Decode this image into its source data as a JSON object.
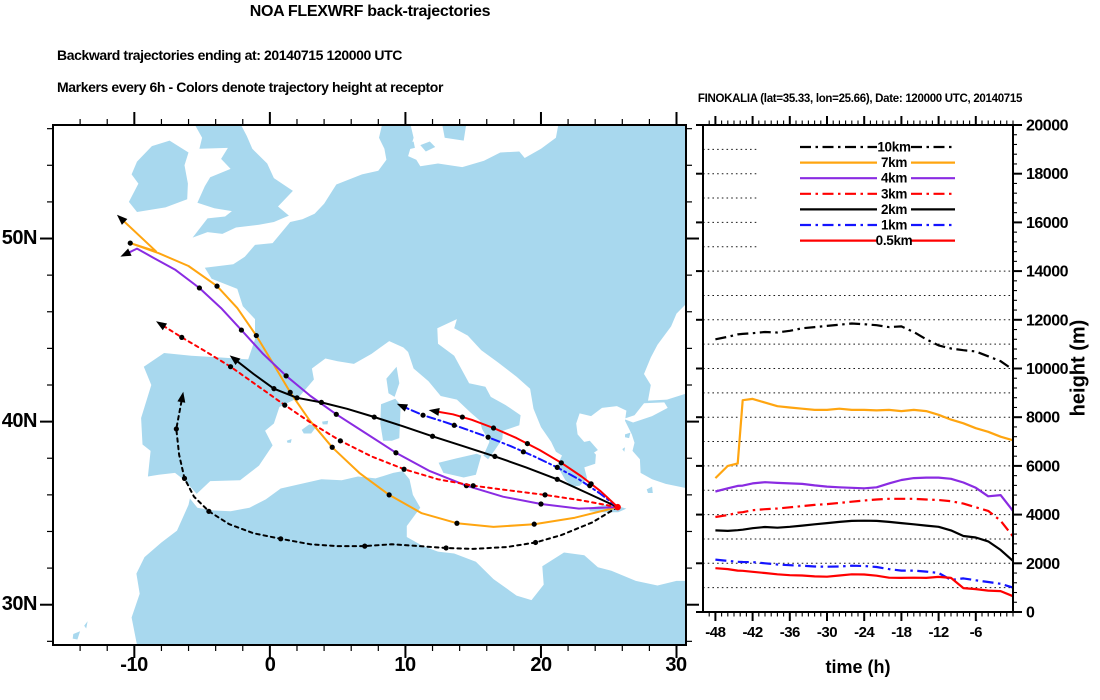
{
  "header": {
    "title": "NOA FLEXWRF back-trajectories",
    "subtitle1": "Backward trajectories ending at: 20140715  120000 UTC",
    "subtitle2": "Markers every 6h - Colors denote trajectory height at receptor"
  },
  "map": {
    "lat_labels": [
      "50N",
      "40N",
      "30N"
    ],
    "lon_labels": [
      "-10",
      "0",
      "10",
      "20",
      "30"
    ],
    "land_color": "#A8D8EE",
    "sea_color": "#FFFFFF"
  },
  "chart_data": [
    {
      "type": "line",
      "title": "FINOKALIA (lat=35.33,  lon=25.66), Date: 120000 UTC, 20140715",
      "xlabel": "time (h)",
      "ylabel": "height (m)",
      "xlim": [
        -50,
        0
      ],
      "ylim": [
        0,
        20000
      ],
      "x_ticks": [
        -48,
        -42,
        -36,
        -30,
        -24,
        -18,
        -12,
        -6
      ],
      "y_ticks": [
        0,
        2000,
        4000,
        6000,
        8000,
        10000,
        12000,
        14000,
        16000,
        18000,
        20000
      ],
      "grid": "horizontal dotted lines every 1000 m",
      "legend_position": "upper center inside",
      "x": [
        -48,
        -46,
        -44.4,
        -43.6,
        -42,
        -40,
        -38,
        -36,
        -34,
        -32,
        -30,
        -28,
        -26,
        -24,
        -22,
        -20,
        -18,
        -16,
        -14,
        -12,
        -10,
        -8,
        -6,
        -4,
        -2,
        0
      ],
      "series": [
        {
          "name": "10km",
          "color": "#000000",
          "line_style": "dashdot",
          "values": [
            11200,
            11300,
            11400,
            11420,
            11450,
            11500,
            11480,
            11550,
            11650,
            11700,
            11750,
            11800,
            11850,
            11820,
            11780,
            11700,
            11730,
            11500,
            11200,
            10950,
            10820,
            10750,
            10700,
            10500,
            10300,
            9950
          ]
        },
        {
          "name": "7km",
          "color": "#FFA510",
          "line_style": "solid",
          "values": [
            5500,
            6000,
            6100,
            8700,
            8750,
            8600,
            8450,
            8400,
            8350,
            8300,
            8300,
            8350,
            8300,
            8300,
            8280,
            8300,
            8250,
            8300,
            8250,
            8100,
            7900,
            7750,
            7550,
            7400,
            7200,
            7050
          ]
        },
        {
          "name": "4km",
          "color": "#8A2BE2",
          "line_style": "solid",
          "values": [
            4950,
            5080,
            5180,
            5190,
            5280,
            5330,
            5300,
            5280,
            5260,
            5200,
            5150,
            5120,
            5100,
            5080,
            5120,
            5280,
            5420,
            5500,
            5520,
            5520,
            5470,
            5320,
            5100,
            4750,
            4800,
            4150
          ]
        },
        {
          "name": "3km",
          "color": "#FF0000",
          "line_style": "dashdot",
          "values": [
            3900,
            3980,
            4080,
            4100,
            4180,
            4220,
            4250,
            4300,
            4350,
            4400,
            4430,
            4480,
            4530,
            4580,
            4620,
            4650,
            4650,
            4650,
            4620,
            4600,
            4550,
            4450,
            4300,
            4150,
            3750,
            3100
          ]
        },
        {
          "name": "2km",
          "color": "#000000",
          "line_style": "solid",
          "values": [
            3350,
            3330,
            3360,
            3380,
            3440,
            3490,
            3460,
            3500,
            3550,
            3600,
            3650,
            3700,
            3740,
            3750,
            3740,
            3700,
            3650,
            3600,
            3550,
            3500,
            3350,
            3120,
            3060,
            2900,
            2550,
            2100
          ]
        },
        {
          "name": "1km",
          "color": "#1414FF",
          "line_style": "dashdot",
          "values": [
            2150,
            2100,
            2060,
            2055,
            2050,
            2000,
            1950,
            1920,
            1900,
            1870,
            1860,
            1870,
            1900,
            1890,
            1850,
            1760,
            1700,
            1700,
            1660,
            1600,
            1320,
            1380,
            1300,
            1230,
            1160,
            1000
          ]
        },
        {
          "name": "0.5km",
          "color": "#FF0000",
          "line_style": "solid",
          "values": [
            1800,
            1760,
            1700,
            1690,
            1650,
            1600,
            1550,
            1510,
            1500,
            1460,
            1450,
            1500,
            1550,
            1540,
            1490,
            1410,
            1400,
            1410,
            1400,
            1440,
            1400,
            980,
            940,
            880,
            860,
            650
          ]
        }
      ]
    },
    {
      "type": "map-trajectories",
      "region": "Europe / Mediterranean",
      "extent": {
        "lon_min": -16,
        "lon_max": 30.7,
        "lat_min": 27.8,
        "lat_max": 56.2
      },
      "receptor": {
        "name": "FINOKALIA",
        "lon": 25.66,
        "lat": 35.33,
        "marker_color": "#FF0000"
      },
      "marker_interval": "6h",
      "trajectories": [
        {
          "name": "10km",
          "color": "#000000",
          "line_style": "dashed",
          "path": [
            [
              25.66,
              35.33
            ],
            [
              23.8,
              34.5
            ],
            [
              21.5,
              33.8
            ],
            [
              19.6,
              33.4
            ],
            [
              17.5,
              33.15
            ],
            [
              15.0,
              33.05
            ],
            [
              13.0,
              33.1
            ],
            [
              11.0,
              33.2
            ],
            [
              9.0,
              33.3
            ],
            [
              7.0,
              33.2
            ],
            [
              5.0,
              33.2
            ],
            [
              3.0,
              33.3
            ],
            [
              0.8,
              33.6
            ],
            [
              -1.2,
              33.9
            ],
            [
              -3.0,
              34.4
            ],
            [
              -4.5,
              35.1
            ],
            [
              -5.6,
              35.9
            ],
            [
              -6.3,
              36.9
            ],
            [
              -6.7,
              38.2
            ],
            [
              -6.9,
              39.6
            ],
            [
              -6.5,
              41.2
            ]
          ],
          "markers": [
            [
              25.66,
              35.33
            ],
            [
              19.6,
              33.4
            ],
            [
              13.0,
              33.1
            ],
            [
              7.0,
              33.2
            ],
            [
              0.8,
              33.6
            ],
            [
              -4.5,
              35.1
            ],
            [
              -6.3,
              36.9
            ],
            [
              -6.9,
              39.6
            ]
          ]
        },
        {
          "name": "7km",
          "color": "#FFA510",
          "line_style": "solid",
          "path": [
            [
              25.66,
              35.33
            ],
            [
              22.5,
              34.75
            ],
            [
              19.5,
              34.4
            ],
            [
              16.5,
              34.25
            ],
            [
              13.8,
              34.45
            ],
            [
              11.2,
              35.0
            ],
            [
              8.8,
              36.0
            ],
            [
              6.6,
              37.2
            ],
            [
              4.6,
              38.6
            ],
            [
              2.9,
              40.1
            ],
            [
              1.5,
              41.6
            ],
            [
              0.3,
              43.1
            ],
            [
              -1.0,
              44.7
            ],
            [
              -2.4,
              46.2
            ],
            [
              -3.9,
              47.4
            ],
            [
              -6.0,
              48.5
            ],
            [
              -8.2,
              49.2
            ],
            [
              -10.3,
              49.75
            ],
            [
              -8.4,
              49.3
            ],
            [
              -10.85,
              51.0
            ]
          ],
          "markers": [
            [
              25.66,
              35.33
            ],
            [
              19.5,
              34.4
            ],
            [
              13.8,
              34.45
            ],
            [
              8.8,
              36.0
            ],
            [
              4.6,
              38.6
            ],
            [
              1.5,
              41.6
            ],
            [
              -1.0,
              44.7
            ],
            [
              -3.9,
              47.4
            ],
            [
              -10.3,
              49.75
            ]
          ]
        },
        {
          "name": "4km",
          "color": "#8A2BE2",
          "line_style": "solid",
          "path": [
            [
              25.66,
              35.33
            ],
            [
              22.8,
              35.25
            ],
            [
              20.0,
              35.5
            ],
            [
              17.2,
              35.9
            ],
            [
              14.5,
              36.5
            ],
            [
              11.8,
              37.3
            ],
            [
              9.3,
              38.3
            ],
            [
              7.0,
              39.4
            ],
            [
              4.9,
              40.4
            ],
            [
              3.0,
              41.4
            ],
            [
              1.2,
              42.5
            ],
            [
              -0.5,
              43.7
            ],
            [
              -2.1,
              45.0
            ],
            [
              -3.6,
              46.2
            ],
            [
              -5.2,
              47.3
            ],
            [
              -7.0,
              48.3
            ],
            [
              -8.6,
              48.95
            ],
            [
              -9.8,
              49.45
            ],
            [
              -10.5,
              49.2
            ]
          ],
          "markers": [
            [
              25.66,
              35.33
            ],
            [
              20.0,
              35.5
            ],
            [
              14.5,
              36.5
            ],
            [
              9.3,
              38.3
            ],
            [
              4.9,
              40.4
            ],
            [
              1.2,
              42.5
            ],
            [
              -2.1,
              45.0
            ],
            [
              -5.2,
              47.3
            ],
            [
              -10.5,
              49.2
            ]
          ]
        },
        {
          "name": "3km",
          "color": "#FF0000",
          "line_style": "dashed",
          "path": [
            [
              25.66,
              35.33
            ],
            [
              23.0,
              35.7
            ],
            [
              20.3,
              36.0
            ],
            [
              17.6,
              36.25
            ],
            [
              15.0,
              36.5
            ],
            [
              12.4,
              36.85
            ],
            [
              9.9,
              37.4
            ],
            [
              7.5,
              38.1
            ],
            [
              5.2,
              38.95
            ],
            [
              3.1,
              39.9
            ],
            [
              1.1,
              40.9
            ],
            [
              -0.9,
              41.95
            ],
            [
              -2.9,
              43.0
            ],
            [
              -4.9,
              43.9
            ],
            [
              -6.5,
              44.6
            ],
            [
              -7.9,
              45.25
            ]
          ],
          "markers": [
            [
              25.66,
              35.33
            ],
            [
              20.3,
              36.0
            ],
            [
              15.0,
              36.5
            ],
            [
              9.9,
              37.4
            ],
            [
              5.2,
              38.95
            ],
            [
              1.1,
              40.9
            ],
            [
              -2.9,
              43.0
            ],
            [
              -6.5,
              44.6
            ],
            [
              -7.9,
              45.25
            ]
          ]
        },
        {
          "name": "2km",
          "color": "#000000",
          "line_style": "solid",
          "path": [
            [
              25.66,
              35.33
            ],
            [
              23.4,
              36.1
            ],
            [
              21.2,
              36.85
            ],
            [
              18.9,
              37.5
            ],
            [
              16.6,
              38.1
            ],
            [
              14.3,
              38.65
            ],
            [
              12.0,
              39.2
            ],
            [
              9.8,
              39.75
            ],
            [
              7.7,
              40.25
            ],
            [
              5.7,
              40.7
            ],
            [
              3.8,
              41.05
            ],
            [
              2.0,
              41.3
            ],
            [
              0.3,
              41.8
            ],
            [
              -1.2,
              42.6
            ],
            [
              -2.5,
              43.35
            ]
          ],
          "markers": [
            [
              25.66,
              35.33
            ],
            [
              21.2,
              36.85
            ],
            [
              16.6,
              38.1
            ],
            [
              12.0,
              39.2
            ],
            [
              7.7,
              40.25
            ],
            [
              3.8,
              41.05
            ],
            [
              2.0,
              41.3
            ],
            [
              0.3,
              41.8
            ]
          ]
        },
        {
          "name": "1km",
          "color": "#1414FF",
          "line_style": "dashdot",
          "path": [
            [
              25.66,
              35.33
            ],
            [
              24.3,
              36.1
            ],
            [
              22.8,
              36.85
            ],
            [
              21.2,
              37.5
            ],
            [
              19.5,
              38.1
            ],
            [
              17.8,
              38.65
            ],
            [
              16.1,
              39.15
            ],
            [
              14.4,
              39.6
            ],
            [
              12.8,
              40.0
            ],
            [
              11.3,
              40.35
            ],
            [
              9.9,
              40.8
            ]
          ],
          "markers": [
            [
              25.66,
              35.33
            ],
            [
              23.6,
              36.5
            ],
            [
              21.2,
              37.5
            ],
            [
              18.7,
              38.35
            ],
            [
              16.1,
              39.15
            ],
            [
              13.6,
              39.8
            ],
            [
              11.3,
              40.35
            ]
          ]
        },
        {
          "name": "0.5km",
          "color": "#FF0000",
          "line_style": "solid",
          "path": [
            [
              25.66,
              35.33
            ],
            [
              24.4,
              36.2
            ],
            [
              23.0,
              37.0
            ],
            [
              21.5,
              37.75
            ],
            [
              19.9,
              38.45
            ],
            [
              18.2,
              39.1
            ],
            [
              16.5,
              39.65
            ],
            [
              14.9,
              40.1
            ],
            [
              13.5,
              40.4
            ],
            [
              12.3,
              40.55
            ]
          ],
          "markers": [
            [
              25.66,
              35.33
            ],
            [
              23.7,
              36.6
            ],
            [
              21.5,
              37.75
            ],
            [
              19.0,
              38.8
            ],
            [
              16.5,
              39.65
            ],
            [
              14.2,
              40.25
            ]
          ]
        }
      ]
    }
  ]
}
